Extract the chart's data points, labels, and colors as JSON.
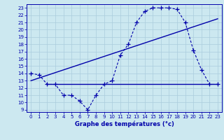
{
  "title": "Graphe des températures (°c)",
  "bg_color": "#cce8f0",
  "grid_color": "#aaccdd",
  "line_color": "#0000aa",
  "xlim": [
    -0.5,
    23.5
  ],
  "ylim": [
    8.7,
    23.5
  ],
  "xticks": [
    0,
    1,
    2,
    3,
    4,
    5,
    6,
    7,
    8,
    9,
    10,
    11,
    12,
    13,
    14,
    15,
    16,
    17,
    18,
    19,
    20,
    21,
    22,
    23
  ],
  "yticks": [
    9,
    10,
    11,
    12,
    13,
    14,
    15,
    16,
    17,
    18,
    19,
    20,
    21,
    22,
    23
  ],
  "hours_main": [
    0,
    1,
    2,
    3,
    4,
    5,
    6,
    7,
    8,
    9,
    10,
    11,
    12,
    13,
    14,
    15,
    16,
    17,
    18,
    19,
    20,
    21,
    22,
    23
  ],
  "temp_main": [
    14.0,
    13.8,
    12.5,
    12.5,
    11.0,
    11.0,
    10.2,
    9.0,
    11.0,
    12.5,
    13.0,
    16.5,
    18.0,
    21.0,
    22.5,
    23.0,
    23.0,
    23.0,
    22.8,
    21.0,
    17.2,
    14.5,
    12.5,
    12.5
  ],
  "hours_rise": [
    0,
    23
  ],
  "temp_rise": [
    13.0,
    21.5
  ],
  "hours_flat": [
    2,
    23
  ],
  "temp_flat": [
    12.5,
    12.5
  ],
  "xlabel_fontsize": 6,
  "tick_fontsize": 5
}
